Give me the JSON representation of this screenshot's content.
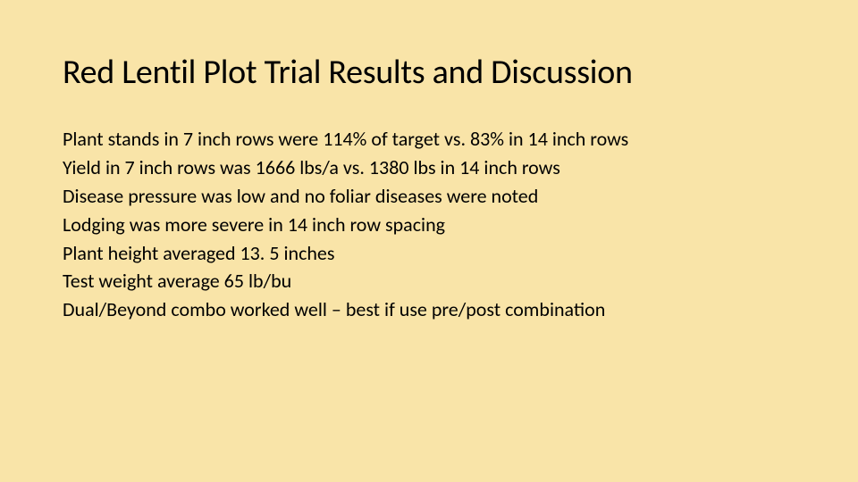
{
  "slide": {
    "background_color": "#f9e4a8",
    "title": {
      "text": "Red Lentil Plot Trial Results and Discussion",
      "font_size": 38,
      "color": "#000000",
      "font_weight": 400
    },
    "bullets": [
      "Plant stands in 7 inch rows were 114% of target vs. 83% in 14 inch rows",
      "Yield in 7 inch rows was 1666 lbs/a vs. 1380 lbs in 14 inch rows",
      "Disease pressure was low and no foliar diseases were noted",
      "Lodging was more severe in 14 inch row spacing",
      "Plant height averaged 13. 5 inches",
      "Test weight average 65 lb/bu",
      "Dual/Beyond combo worked well – best if use pre/post combination"
    ],
    "bullet_style": {
      "font_size": 22,
      "color": "#000000",
      "line_height": 1.45
    }
  }
}
